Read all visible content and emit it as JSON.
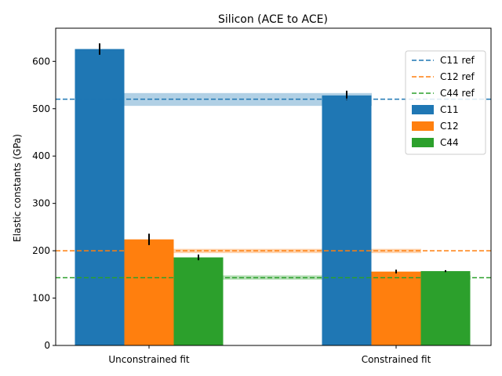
{
  "chart_data": {
    "type": "bar",
    "title": "Silicon (ACE to ACE)",
    "xlabel": "",
    "ylabel": "Elastic constants (GPa)",
    "ylim": [
      0,
      670
    ],
    "yticks": [
      0,
      100,
      200,
      300,
      400,
      500,
      600
    ],
    "categories": [
      "Unconstrained fit",
      "Constrained fit"
    ],
    "series": [
      {
        "name": "C11",
        "color": "#1f77b4",
        "values": [
          626,
          528
        ],
        "errors": [
          12,
          10
        ]
      },
      {
        "name": "C12",
        "color": "#ff7f0e",
        "values": [
          224,
          156
        ],
        "errors": [
          12,
          4
        ]
      },
      {
        "name": "C44",
        "color": "#2ca02c",
        "values": [
          186,
          157
        ],
        "errors": [
          6,
          2
        ]
      }
    ],
    "reference_lines": [
      {
        "name": "C11 ref",
        "color": "#1f77b4",
        "value": 520
      },
      {
        "name": "C12 ref",
        "color": "#ff7f0e",
        "value": 200
      },
      {
        "name": "C44 ref",
        "color": "#2ca02c",
        "value": 143
      }
    ],
    "reference_bands": [
      {
        "color": "#1f77b4",
        "low": 506,
        "high": 533
      },
      {
        "color": "#ff7f0e",
        "low": 195,
        "high": 204
      },
      {
        "color": "#2ca02c",
        "low": 139,
        "high": 148
      }
    ],
    "grid": false,
    "legend_position": "upper-right"
  }
}
